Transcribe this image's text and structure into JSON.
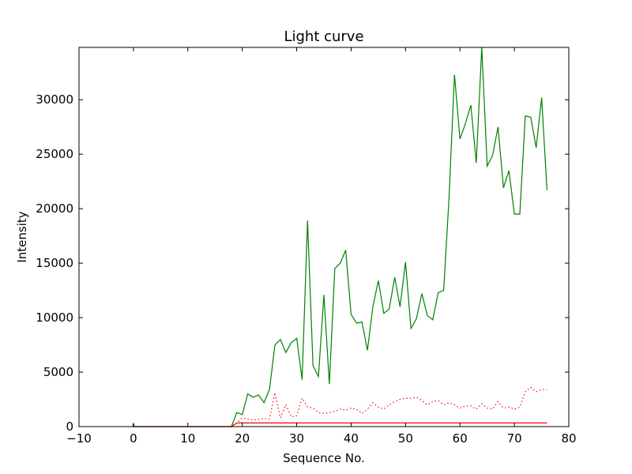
{
  "chart_data": {
    "type": "line",
    "title": "Light curve",
    "xlabel": "Sequence No.",
    "ylabel": "Intensity",
    "xlim": [
      -10,
      80
    ],
    "ylim": [
      0,
      34800
    ],
    "xticks": [
      -10,
      0,
      10,
      20,
      30,
      40,
      50,
      60,
      70,
      80
    ],
    "yticks": [
      0,
      5000,
      10000,
      15000,
      20000,
      25000,
      30000
    ],
    "grid": false,
    "series": [
      {
        "color": "#008000",
        "style": "solid",
        "x": [
          0,
          1,
          2,
          3,
          4,
          5,
          6,
          7,
          8,
          9,
          10,
          11,
          12,
          13,
          14,
          15,
          16,
          17,
          18,
          19,
          20,
          21,
          22,
          23,
          24,
          25,
          26,
          27,
          28,
          29,
          30,
          31,
          32,
          33,
          34,
          35,
          36,
          37,
          38,
          39,
          40,
          41,
          42,
          43,
          44,
          45,
          46,
          47,
          48,
          49,
          50,
          51,
          52,
          53,
          54,
          55,
          56,
          57,
          58,
          59,
          60,
          61,
          62,
          63,
          64,
          65,
          66,
          67,
          68,
          69,
          70,
          71,
          72,
          73,
          74,
          75,
          76
        ],
        "values": [
          0,
          0,
          0,
          0,
          0,
          0,
          0,
          0,
          0,
          0,
          0,
          0,
          0,
          0,
          0,
          0,
          0,
          0,
          0,
          1300,
          1100,
          3000,
          2700,
          2900,
          2200,
          3400,
          7500,
          8000,
          6800,
          7700,
          8100,
          4300,
          18900,
          5600,
          4600,
          12100,
          3900,
          14500,
          15000,
          16200,
          10300,
          9500,
          9600,
          7000,
          11000,
          13400,
          10400,
          10800,
          13700,
          11000,
          15100,
          9000,
          9900,
          12200,
          10200,
          9800,
          12300,
          12500,
          21000,
          32300,
          26400,
          27800,
          29500,
          24200,
          34800,
          23900,
          24900,
          27500,
          21900,
          23500,
          19500,
          19500,
          28500,
          28400,
          25600,
          30200,
          21700
        ]
      },
      {
        "color": "#ff0000",
        "style": "dotted",
        "x": [
          0,
          1,
          2,
          3,
          4,
          5,
          6,
          7,
          8,
          9,
          10,
          11,
          12,
          13,
          14,
          15,
          16,
          17,
          18,
          19,
          20,
          21,
          22,
          23,
          24,
          25,
          26,
          27,
          28,
          29,
          30,
          31,
          32,
          33,
          34,
          35,
          36,
          37,
          38,
          39,
          40,
          41,
          42,
          43,
          44,
          45,
          46,
          47,
          48,
          49,
          50,
          51,
          52,
          53,
          54,
          55,
          56,
          57,
          58,
          59,
          60,
          61,
          62,
          63,
          64,
          65,
          66,
          67,
          68,
          69,
          70,
          71,
          72,
          73,
          74,
          75,
          76
        ],
        "values": [
          0,
          0,
          0,
          0,
          0,
          0,
          0,
          0,
          0,
          0,
          0,
          0,
          0,
          0,
          0,
          0,
          0,
          0,
          0,
          350,
          800,
          700,
          600,
          650,
          750,
          700,
          3100,
          800,
          2000,
          900,
          1000,
          2600,
          1800,
          1700,
          1300,
          1200,
          1300,
          1400,
          1600,
          1500,
          1700,
          1600,
          1200,
          1600,
          2200,
          1800,
          1600,
          2000,
          2300,
          2500,
          2600,
          2600,
          2700,
          2400,
          2000,
          2300,
          2400,
          2000,
          2200,
          2000,
          1700,
          1900,
          1900,
          1600,
          2100,
          1700,
          1600,
          2300,
          1700,
          1800,
          1600,
          1800,
          3200,
          3600,
          3200,
          3400,
          3400
        ]
      },
      {
        "color": "#ff0000",
        "style": "solid",
        "x": [
          0,
          18,
          19,
          76
        ],
        "values": [
          0,
          0,
          330,
          330
        ]
      }
    ],
    "markers": [
      {
        "color": "#0000ff",
        "x": 0,
        "y": 0
      }
    ]
  }
}
